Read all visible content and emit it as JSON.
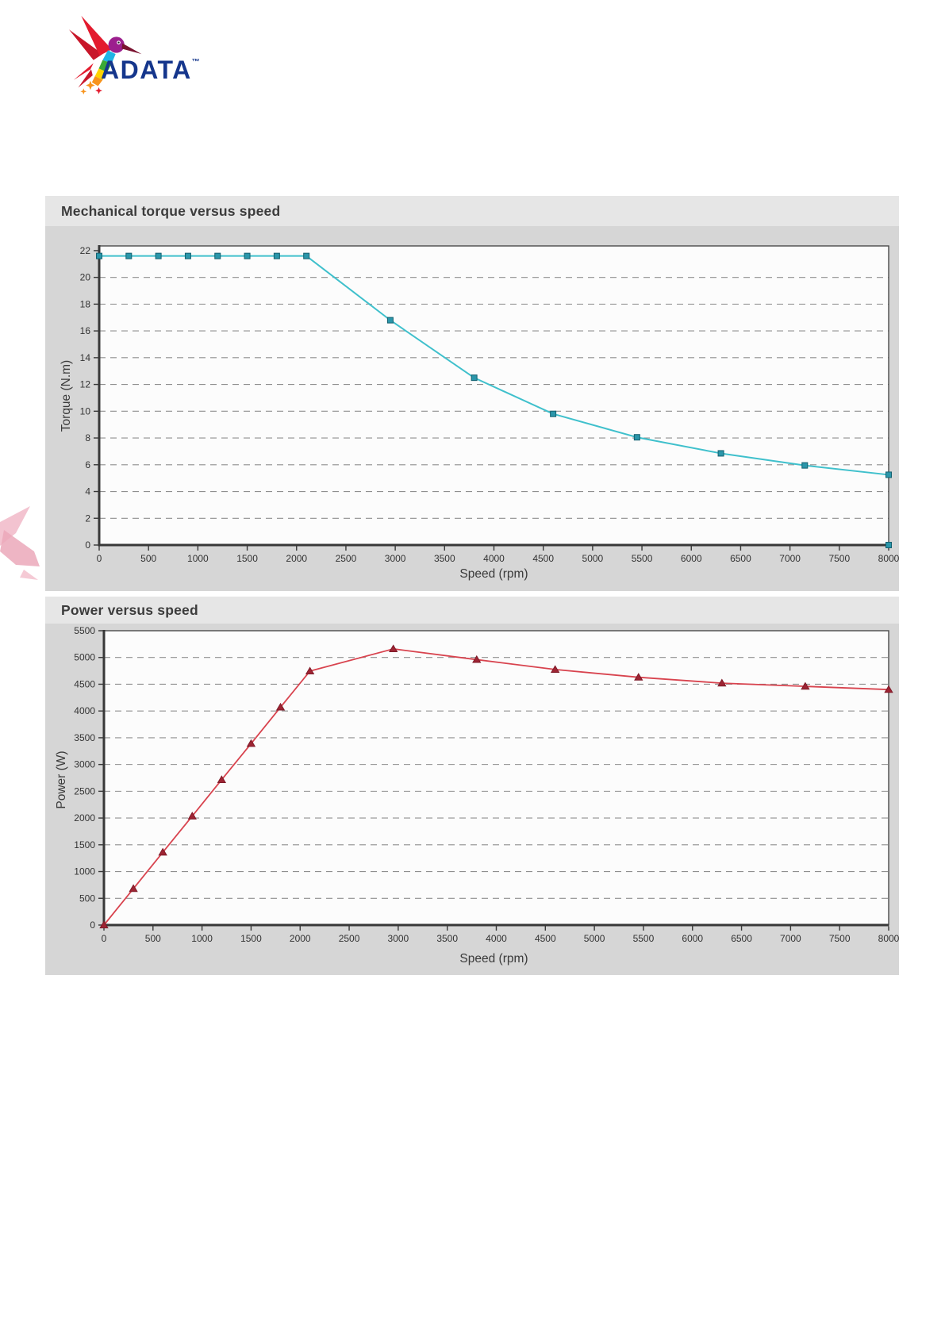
{
  "page": {
    "background": "#ffffff",
    "panel_background": "#d6d6d6",
    "title_strip_background": "#e6e6e6"
  },
  "logo": {
    "brand": "ADATA",
    "trademark": "™",
    "colors": {
      "wordmark_blue": "#15368c",
      "wing_red": "#e31b2e",
      "wing_dark_red": "#c8172a",
      "head_magenta": "#9c1f8e",
      "beak_maroon": "#7a1230",
      "body_cyan": "#1fb4e6",
      "body_green": "#3aaa35",
      "body_yellow": "#ffd400",
      "body_orange": "#f7941d"
    }
  },
  "watermark": {
    "color_light": "#f2bdcb",
    "color_dark": "#eba8ba"
  },
  "chart_data": [
    {
      "type": "line",
      "title": "Mechanical torque versus speed",
      "xlabel": "Speed (rpm)",
      "ylabel": "Torque (N.m)",
      "xlim": [
        0,
        8000
      ],
      "ylim": [
        0,
        22
      ],
      "xticks": [
        0,
        500,
        1000,
        1500,
        2000,
        2500,
        3000,
        3500,
        4000,
        4500,
        5000,
        5500,
        6000,
        6500,
        7000,
        7500,
        8000
      ],
      "yticks": [
        0,
        2,
        4,
        6,
        8,
        10,
        12,
        14,
        16,
        18,
        20,
        22
      ],
      "grid_ticks": [
        2,
        4,
        6,
        8,
        10,
        12,
        14,
        16,
        18,
        20
      ],
      "grid": "dashed-horizontal",
      "legend": "none",
      "line_color": "#3fc0cc",
      "line_width": 2,
      "marker": "square",
      "marker_color": "#2a96aa",
      "marker_edge": "#14606f",
      "x": [
        0,
        300,
        600,
        900,
        1200,
        1500,
        1800,
        2100,
        2950,
        3800,
        4600,
        5450,
        6300,
        7150,
        8000
      ],
      "y": [
        21.6,
        21.6,
        21.6,
        21.6,
        21.6,
        21.6,
        21.6,
        21.6,
        16.8,
        12.5,
        9.8,
        8.05,
        6.85,
        5.95,
        5.25
      ],
      "extra_markers": [
        [
          8000,
          0
        ]
      ]
    },
    {
      "type": "line",
      "title": "Power versus speed",
      "xlabel": "Speed (rpm)",
      "ylabel": "Power (W)",
      "xlim": [
        0,
        8000
      ],
      "ylim": [
        0,
        5500
      ],
      "xticks": [
        0,
        500,
        1000,
        1500,
        2000,
        2500,
        3000,
        3500,
        4000,
        4500,
        5000,
        5500,
        6000,
        6500,
        7000,
        7500,
        8000
      ],
      "yticks": [
        0,
        500,
        1000,
        1500,
        2000,
        2500,
        3000,
        3500,
        4000,
        4500,
        5000,
        5500
      ],
      "grid_ticks": [
        500,
        1000,
        1500,
        2000,
        2500,
        3000,
        3500,
        4000,
        4500,
        5000
      ],
      "grid": "dashed-horizontal",
      "legend": "none",
      "line_color": "#d8434e",
      "line_width": 1.8,
      "marker": "triangle",
      "marker_color": "#9e2433",
      "marker_edge": "#7e1a28",
      "x": [
        0,
        300,
        600,
        900,
        1200,
        1500,
        1800,
        2100,
        2950,
        3800,
        4600,
        5450,
        6300,
        7150,
        8000
      ],
      "y": [
        0,
        680,
        1360,
        2035,
        2715,
        3390,
        4070,
        4745,
        5160,
        4960,
        4775,
        4630,
        4520,
        4460,
        4400
      ],
      "extra_markers": []
    }
  ]
}
